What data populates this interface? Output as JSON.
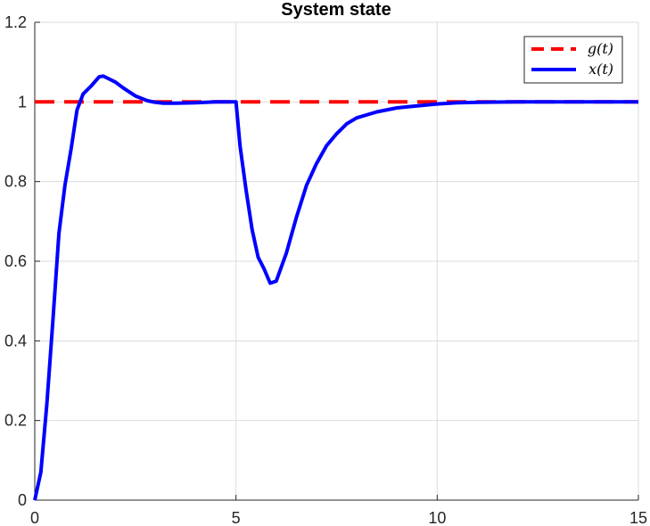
{
  "chart_data": {
    "type": "line",
    "title": "System state",
    "xlabel": "",
    "ylabel": "",
    "xlim": [
      0,
      15
    ],
    "ylim": [
      0,
      1.2
    ],
    "xticks": [
      0,
      5,
      10,
      15
    ],
    "xtick_labels": [
      "0",
      "5",
      "10",
      "15"
    ],
    "yticks": [
      0,
      0.2,
      0.4,
      0.6,
      0.8,
      1,
      1.2
    ],
    "ytick_labels": [
      "0",
      "0.2",
      "0.4",
      "0.6",
      "0.8",
      "1",
      "1.2"
    ],
    "grid": true,
    "legend_position": "top-right",
    "series": [
      {
        "name": "g(t)",
        "style": "dashed",
        "color": "#ff0000",
        "x": [
          0,
          15
        ],
        "y": [
          1,
          1
        ]
      },
      {
        "name": "x(t)",
        "style": "solid",
        "color": "#0000ff",
        "x": [
          0,
          0.15,
          0.3,
          0.45,
          0.6,
          0.75,
          0.9,
          1.05,
          1.2,
          1.4,
          1.6,
          1.7,
          1.8,
          2.0,
          2.2,
          2.5,
          2.8,
          3.0,
          3.2,
          3.5,
          4.0,
          4.5,
          5.0,
          5.1,
          5.25,
          5.4,
          5.55,
          5.7,
          5.85,
          6.0,
          6.25,
          6.5,
          6.75,
          7.0,
          7.25,
          7.5,
          7.75,
          8.0,
          8.5,
          9.0,
          9.5,
          10.0,
          10.5,
          11.0,
          12.0,
          13.0,
          14.0,
          15.0
        ],
        "y": [
          0,
          0.07,
          0.24,
          0.45,
          0.67,
          0.79,
          0.88,
          0.98,
          1.02,
          1.04,
          1.063,
          1.065,
          1.06,
          1.05,
          1.035,
          1.015,
          1.003,
          0.999,
          0.997,
          0.997,
          0.998,
          1.0,
          1.0,
          0.89,
          0.78,
          0.68,
          0.61,
          0.58,
          0.545,
          0.55,
          0.62,
          0.71,
          0.79,
          0.845,
          0.89,
          0.92,
          0.945,
          0.96,
          0.975,
          0.985,
          0.99,
          0.995,
          0.998,
          0.999,
          1.0,
          1.0,
          1.0,
          1.0
        ]
      }
    ]
  }
}
